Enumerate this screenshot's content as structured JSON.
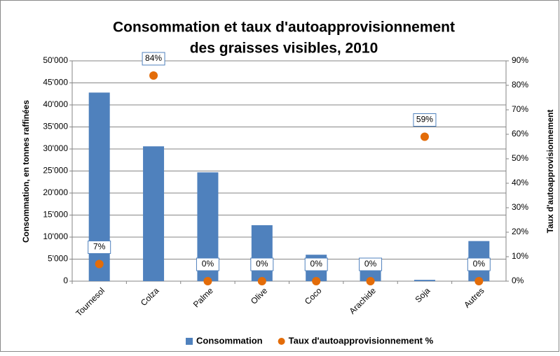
{
  "chart_data": {
    "type": "bar",
    "title": [
      "Consommation et taux d'autoapprovisionnement",
      "des graisses visibles, 2010"
    ],
    "y_label": "Consommation, en tonnes raffinées",
    "y2_label": "Taux d'autoapprovisionnement",
    "categories": [
      "Tournesol",
      "Colza",
      "Palme",
      "Olive",
      "Coco",
      "Arachide",
      "Soja",
      "Autres"
    ],
    "series": [
      {
        "name": "Consommation",
        "type": "bar",
        "color": "#4f81bd",
        "values": [
          42800,
          30600,
          24700,
          12700,
          6000,
          5300,
          300,
          9100
        ]
      },
      {
        "name": "Taux d'autoapprovisionnement %",
        "type": "scatter",
        "axis": "y2",
        "color": "#e36c09",
        "values": [
          7,
          84,
          0,
          0,
          0,
          0,
          59,
          0
        ],
        "value_labels": [
          "7%",
          "84%",
          "0%",
          "0%",
          "0%",
          "0%",
          "59%",
          "0%"
        ]
      }
    ],
    "ylim": [
      0,
      50000
    ],
    "yticks": [
      0,
      {
        "value": 5000,
        "label": "5'000"
      },
      {
        "value": 10000,
        "label": "10'000"
      },
      {
        "value": 15000,
        "label": "15'000"
      },
      {
        "value": 20000,
        "label": "20'000"
      },
      {
        "value": 25000,
        "label": "25'000"
      },
      {
        "value": 30000,
        "label": "30'000"
      },
      {
        "value": 35000,
        "label": "35'000"
      },
      {
        "value": 40000,
        "label": "40'000"
      },
      {
        "value": 45000,
        "label": "45'000"
      },
      {
        "value": 50000,
        "label": "50'000"
      }
    ],
    "y2lim": [
      0,
      90
    ],
    "y2ticks": [
      {
        "value": 0,
        "label": "0%"
      },
      {
        "value": 10,
        "label": "10%"
      },
      {
        "value": 20,
        "label": "20%"
      },
      {
        "value": 30,
        "label": "30%"
      },
      {
        "value": 40,
        "label": "40%"
      },
      {
        "value": 50,
        "label": "50%"
      },
      {
        "value": 60,
        "label": "60%"
      },
      {
        "value": 70,
        "label": "70%"
      },
      {
        "value": 80,
        "label": "80%"
      },
      {
        "value": 90,
        "label": "90%"
      }
    ],
    "grid": true,
    "legend": "bottom"
  }
}
